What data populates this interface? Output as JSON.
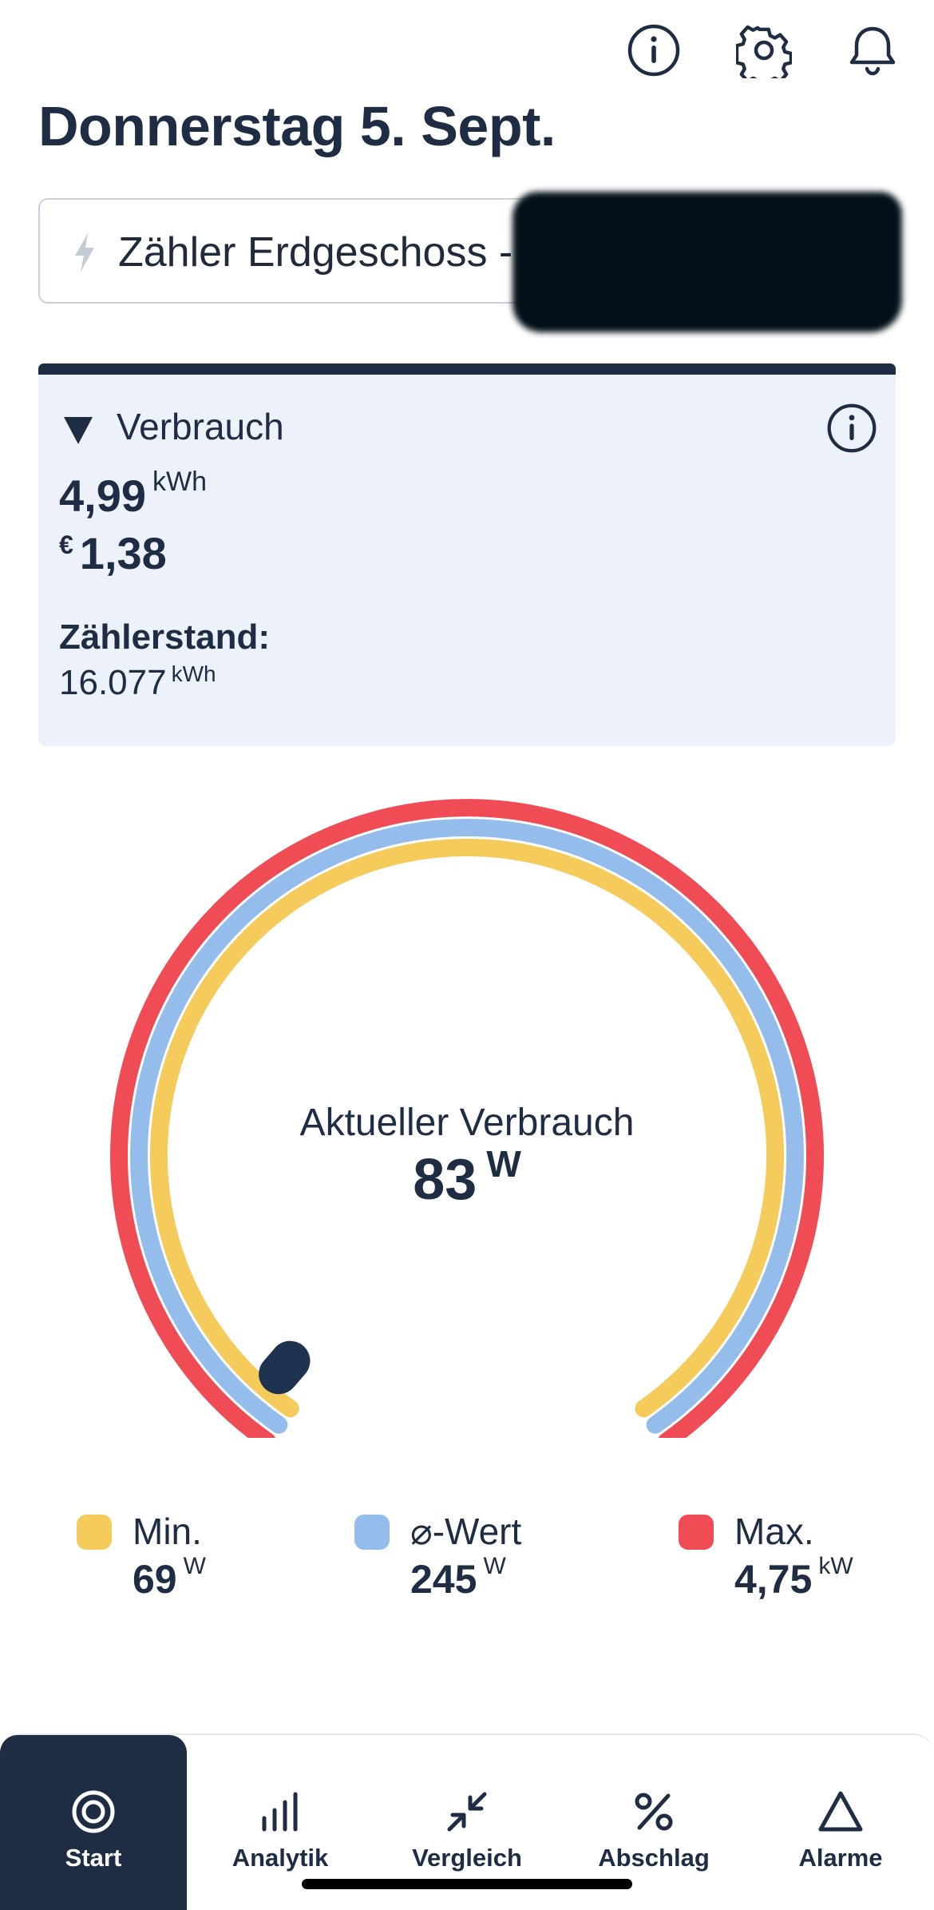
{
  "header": {
    "title": "Donnerstag 5. Sept.",
    "icons": [
      "info-icon",
      "gear-icon",
      "bell-icon"
    ]
  },
  "meter_select": {
    "label": "Zähler Erdgeschoss -"
  },
  "consumption_card": {
    "heading": "Verbrauch",
    "energy_value": "4,99",
    "energy_unit": "kWh",
    "cost_currency": "€",
    "cost_value": "1,38",
    "reading_label": "Zählerstand:",
    "reading_value": "16.077",
    "reading_unit": "kWh"
  },
  "gauge": {
    "label": "Aktueller Verbrauch",
    "value": "83",
    "unit": "W",
    "level_fraction": 0.02,
    "colors": {
      "min": "#f5cb5c",
      "avg": "#94bdec",
      "max": "#ef4c55",
      "marker": "#1e3350"
    }
  },
  "legend": [
    {
      "name": "Min.",
      "value": "69",
      "unit": "W",
      "color": "#f5cb5c"
    },
    {
      "name": "⌀-Wert",
      "value": "245",
      "unit": "W",
      "color": "#94bdec"
    },
    {
      "name": "Max.",
      "value": "4,75",
      "unit": "kW",
      "color": "#ef4c55"
    }
  ],
  "tabs": [
    {
      "label": "Start",
      "icon": "target-icon",
      "active": true
    },
    {
      "label": "Analytik",
      "icon": "bars-icon",
      "active": false
    },
    {
      "label": "Vergleich",
      "icon": "compare-arrows-icon",
      "active": false
    },
    {
      "label": "Abschlag",
      "icon": "percent-icon",
      "active": false
    },
    {
      "label": "Alarme",
      "icon": "triangle-alert-icon",
      "active": false
    }
  ]
}
